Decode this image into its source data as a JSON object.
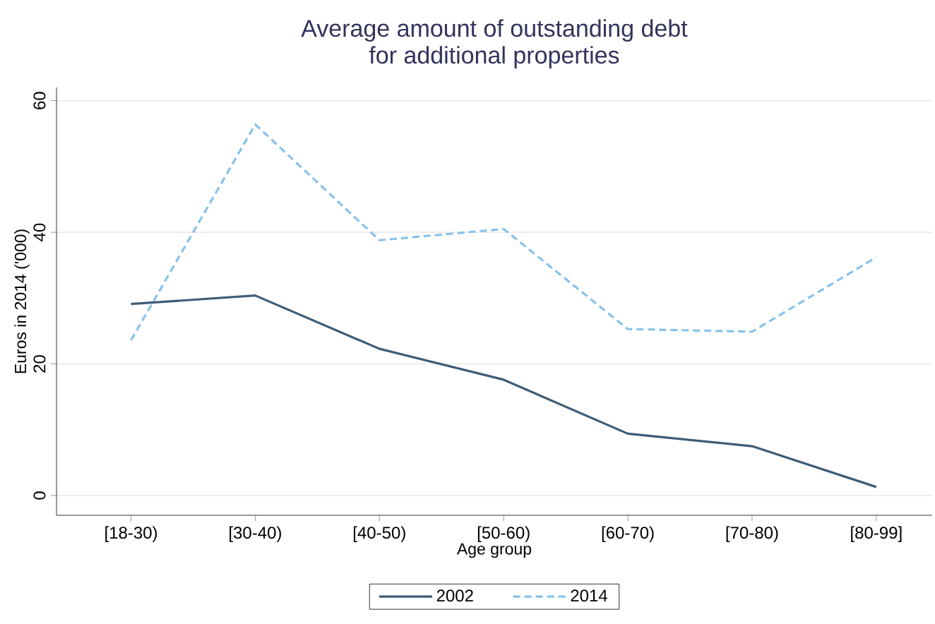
{
  "chart_data": {
    "type": "line",
    "title": "Average amount of outstanding debt\nfor additional properties",
    "xlabel": "Age group",
    "ylabel": "Euros in 2014 ('000)",
    "categories": [
      "[18-30)",
      "[30-40)",
      "[40-50)",
      "[50-60)",
      "[60-70)",
      "[70-80)",
      "[80-99]"
    ],
    "series": [
      {
        "name": "2002",
        "color": "#3e5c76",
        "line_style": "solid",
        "values": [
          29.1,
          30.4,
          22.3,
          17.6,
          9.4,
          7.5,
          1.3
        ]
      },
      {
        "name": "2014",
        "color": "#88c2ea",
        "line_style": "dashed",
        "values": [
          23.6,
          56.4,
          38.8,
          40.5,
          25.3,
          24.9,
          36.2
        ]
      }
    ],
    "ylim": [
      -3,
      62
    ],
    "yticks": [
      0,
      20,
      40,
      60
    ],
    "grid": "y",
    "legend": "bottom",
    "marker": "none"
  }
}
